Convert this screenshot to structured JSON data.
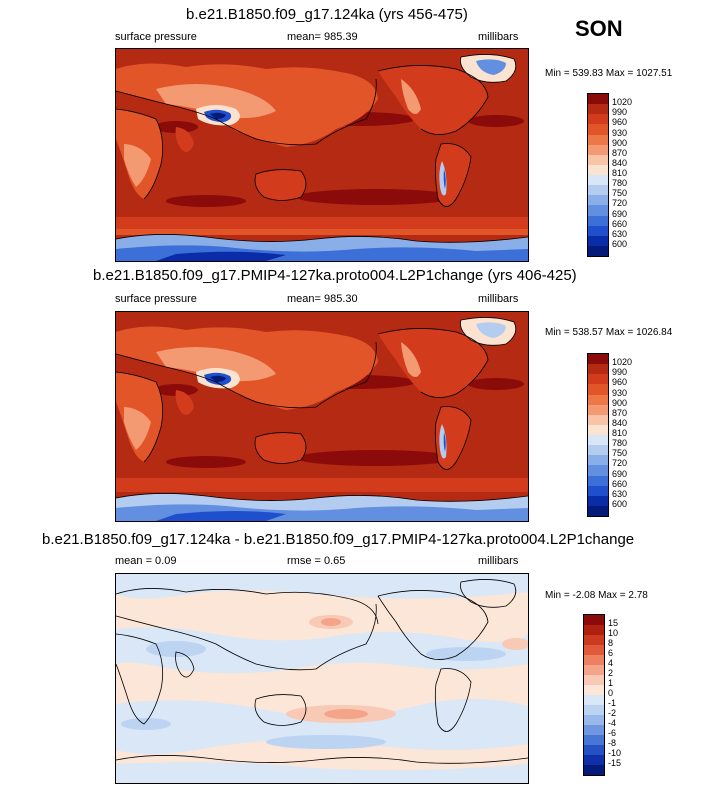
{
  "season": "SON",
  "panels": [
    {
      "id": "p1",
      "title": "b.e21.B1850.f09_g17.124ka (yrs 456-475)",
      "left_label": "surface pressure",
      "center_label": "mean= 985.39",
      "right_label": "millibars",
      "minmax": "Min = 539.83 Max = 1027.51",
      "colorbar_labels": [
        "1020",
        "990",
        "960",
        "930",
        "900",
        "870",
        "840",
        "810",
        "780",
        "750",
        "720",
        "690",
        "660",
        "630",
        "600"
      ],
      "colorbar_colors": [
        "#8b0a0a",
        "#b52a12",
        "#d23b1b",
        "#e25529",
        "#ee7748",
        "#f39a72",
        "#f8c3a7",
        "#fbe3d1",
        "#d8e6f7",
        "#b4ccf0",
        "#8aaee8",
        "#628fe0",
        "#3d6fd8",
        "#1f4fcc",
        "#0a2ca8",
        "#061a7a"
      ]
    },
    {
      "id": "p2",
      "title": "b.e21.B1850.f09_g17.PMIP4-127ka.proto004.L2P1change (yrs 406-425)",
      "left_label": "surface pressure",
      "center_label": "mean= 985.30",
      "right_label": "millibars",
      "minmax": "Min = 538.57 Max = 1026.84",
      "colorbar_labels": [
        "1020",
        "990",
        "960",
        "930",
        "900",
        "870",
        "840",
        "810",
        "780",
        "750",
        "720",
        "690",
        "660",
        "630",
        "600"
      ],
      "colorbar_colors": [
        "#8b0a0a",
        "#b52a12",
        "#d23b1b",
        "#e25529",
        "#ee7748",
        "#f39a72",
        "#f8c3a7",
        "#fbe3d1",
        "#d8e6f7",
        "#b4ccf0",
        "#8aaee8",
        "#628fe0",
        "#3d6fd8",
        "#1f4fcc",
        "#0a2ca8",
        "#061a7a"
      ]
    },
    {
      "id": "p3",
      "title": "b.e21.B1850.f09_g17.124ka - b.e21.B1850.f09_g17.PMIP4-127ka.proto004.L2P1change",
      "left_label": "mean =  0.09",
      "center_label": "rmse =  0.65",
      "right_label": "millibars",
      "minmax": "Min =  -2.08 Max =  2.78",
      "colorbar_labels": [
        "15",
        "10",
        "8",
        "6",
        "4",
        "2",
        "1",
        "0",
        "-1",
        "-2",
        "-4",
        "-6",
        "-8",
        "-10",
        "-15"
      ],
      "colorbar_colors": [
        "#8b0a0a",
        "#b0200f",
        "#cc3a1f",
        "#e05a3a",
        "#ec805f",
        "#f3a489",
        "#f8c9b4",
        "#fbe6d8",
        "#d9e7f7",
        "#bcd3f2",
        "#98b9ea",
        "#6f98e0",
        "#4876d5",
        "#2451c4",
        "#0f30a8",
        "#061a7a"
      ]
    }
  ]
}
